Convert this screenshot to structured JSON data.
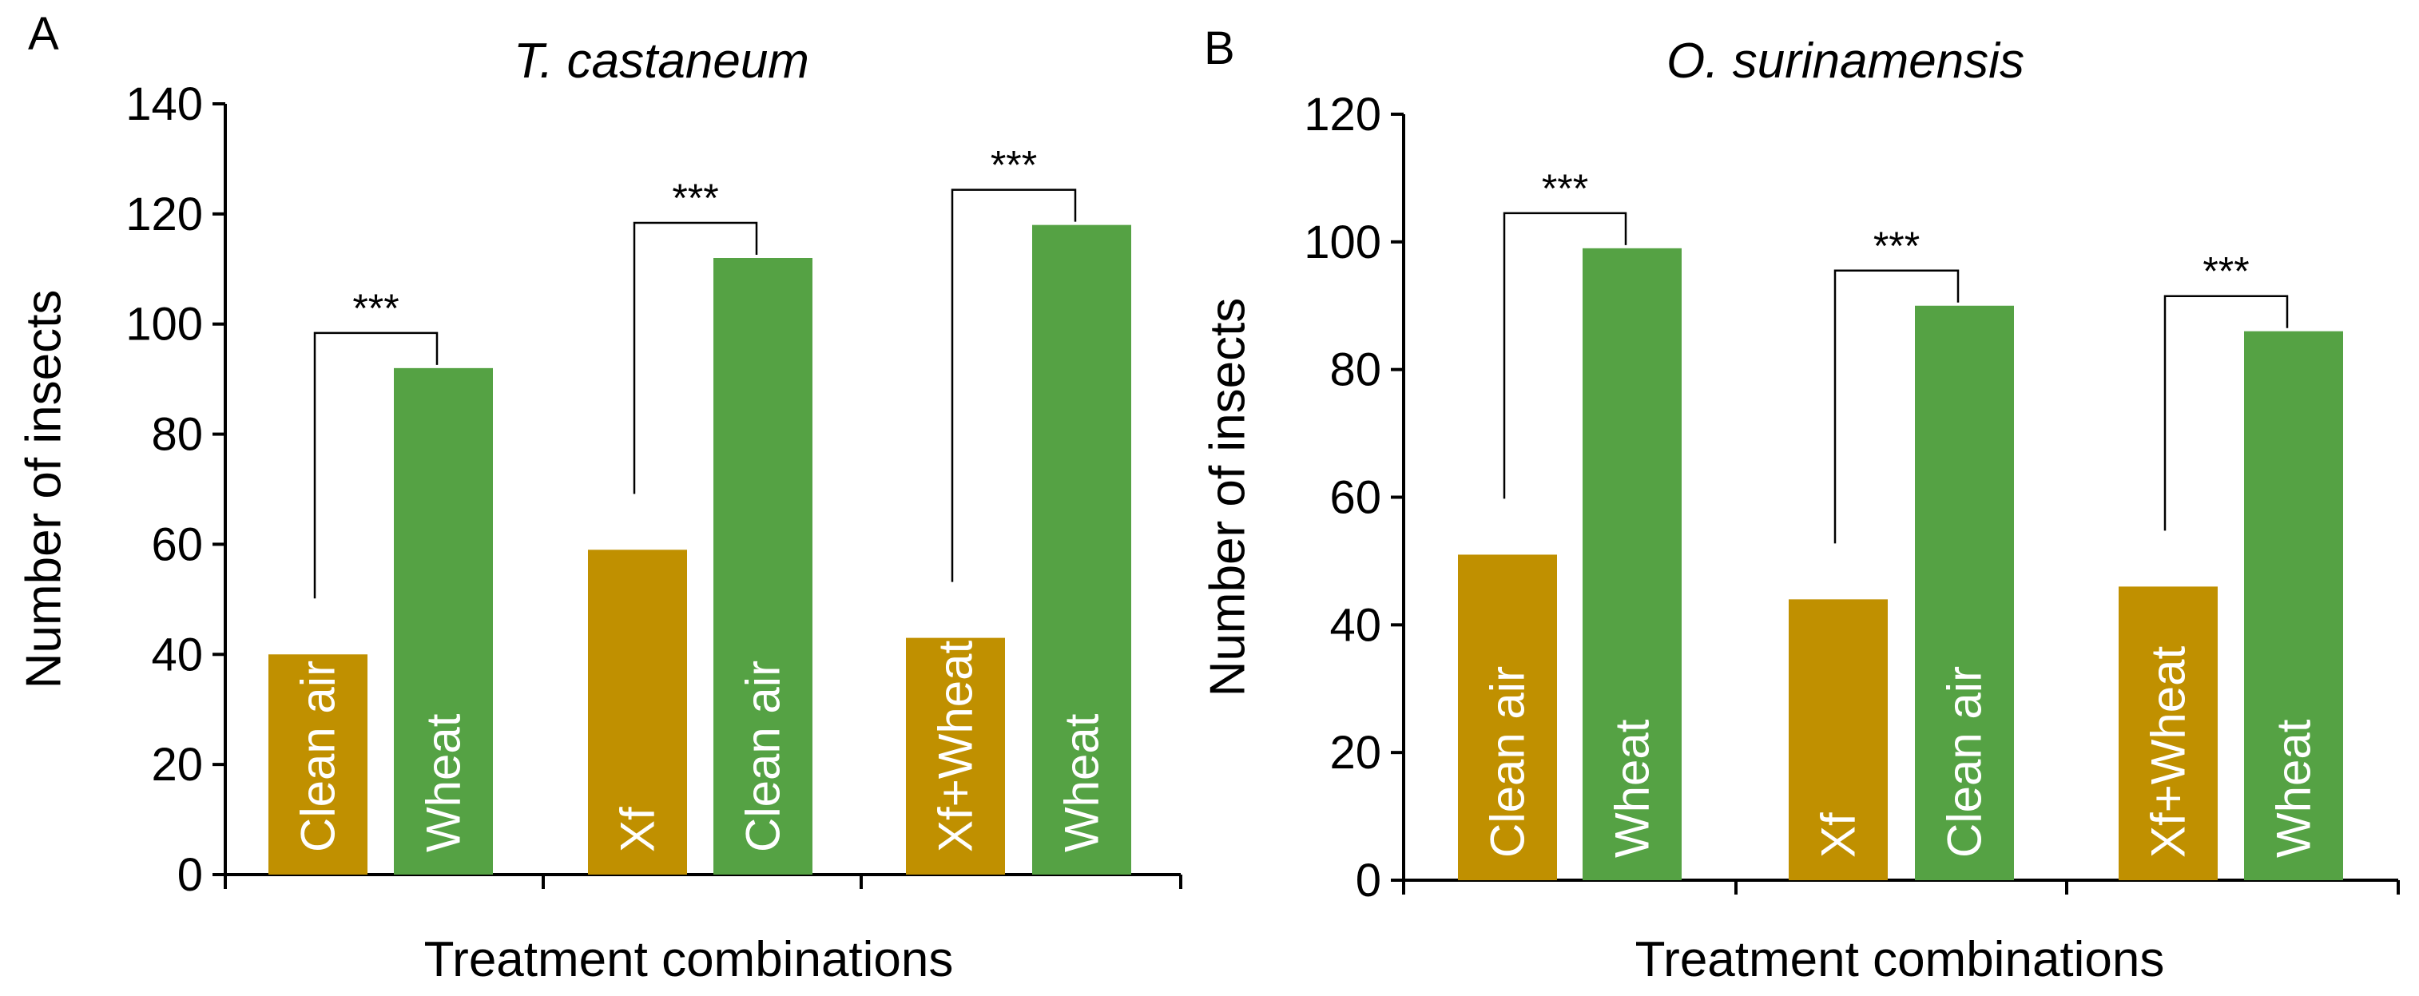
{
  "chart_data": [
    {
      "type": "bar",
      "panel": "A",
      "title": "T. castaneum",
      "xlabel": "Treatment combinations",
      "ylabel": "Number of insects",
      "ylim": [
        0,
        140
      ],
      "yticks": [
        0,
        20,
        40,
        60,
        80,
        100,
        120,
        140
      ],
      "groups": [
        {
          "bars": [
            {
              "label": "Clean air",
              "value": 40,
              "type": "control"
            },
            {
              "label": "Wheat",
              "value": 92,
              "type": "treatment"
            }
          ],
          "significance": "***"
        },
        {
          "bars": [
            {
              "label": "Xf",
              "value": 59,
              "type": "control"
            },
            {
              "label": "Clean air",
              "value": 112,
              "type": "treatment"
            }
          ],
          "significance": "***"
        },
        {
          "bars": [
            {
              "label": "Xf+Wheat",
              "value": 43,
              "type": "control"
            },
            {
              "label": "Wheat",
              "value": 118,
              "type": "treatment"
            }
          ],
          "significance": "***"
        }
      ]
    },
    {
      "type": "bar",
      "panel": "B",
      "title": "O. surinamensis",
      "xlabel": "Treatment combinations",
      "ylabel": "Number of insects",
      "ylim": [
        0,
        120
      ],
      "yticks": [
        0,
        20,
        40,
        60,
        80,
        100,
        120
      ],
      "groups": [
        {
          "bars": [
            {
              "label": "Clean air",
              "value": 51,
              "type": "control"
            },
            {
              "label": "Wheat",
              "value": 99,
              "type": "treatment"
            }
          ],
          "significance": "***"
        },
        {
          "bars": [
            {
              "label": "Xf",
              "value": 44,
              "type": "control"
            },
            {
              "label": "Clean air",
              "value": 90,
              "type": "treatment"
            }
          ],
          "significance": "***"
        },
        {
          "bars": [
            {
              "label": "Xf+Wheat",
              "value": 46,
              "type": "control"
            },
            {
              "label": "Wheat",
              "value": 86,
              "type": "treatment"
            }
          ],
          "significance": "***"
        }
      ]
    }
  ],
  "colors": {
    "control": "#C09000",
    "treatment": "#55A244"
  }
}
